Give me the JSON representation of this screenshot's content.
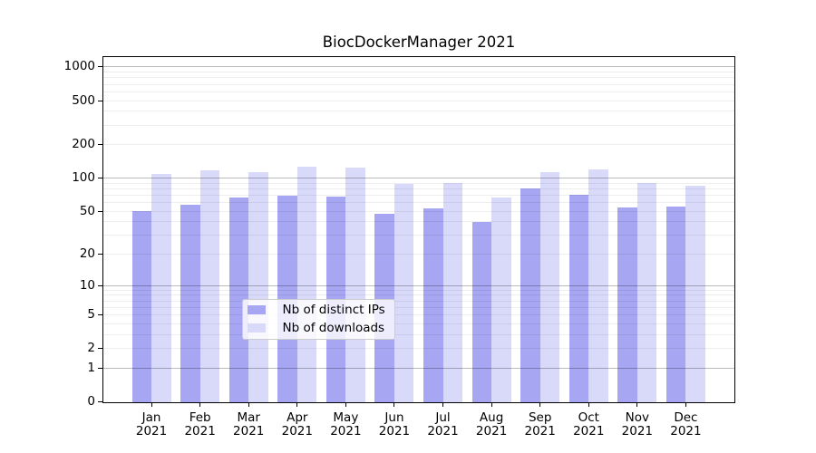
{
  "title": "BiocDockerManager 2021",
  "legend": {
    "items": [
      {
        "label": "Nb of distinct IPs",
        "color": "#a6a6f2"
      },
      {
        "label": "Nb of downloads",
        "color": "#d9d9fa"
      }
    ],
    "position": "lower center"
  },
  "axes": {
    "y_tick_labels": [
      "0",
      "1",
      "2",
      "5",
      "10",
      "20",
      "50",
      "100",
      "200",
      "500",
      "1000"
    ],
    "x_tick_labels_line1": [
      "Jan",
      "Feb",
      "Mar",
      "Apr",
      "May",
      "Jun",
      "Jul",
      "Aug",
      "Sep",
      "Oct",
      "Nov",
      "Dec"
    ],
    "x_tick_labels_line2": "2021"
  },
  "chart_data": {
    "type": "bar",
    "title": "BiocDockerManager 2021",
    "categories": [
      "Jan 2021",
      "Feb 2021",
      "Mar 2021",
      "Apr 2021",
      "May 2021",
      "Jun 2021",
      "Jul 2021",
      "Aug 2021",
      "Sep 2021",
      "Oct 2021",
      "Nov 2021",
      "Dec 2021"
    ],
    "series": [
      {
        "name": "Nb of distinct IPs",
        "color": "#a6a6f2",
        "values": [
          50,
          57,
          67,
          70,
          68,
          47,
          53,
          40,
          81,
          71,
          54,
          55
        ]
      },
      {
        "name": "Nb of downloads",
        "color": "#d9d9fa",
        "values": [
          110,
          118,
          114,
          127,
          125,
          88,
          91,
          67,
          113,
          121,
          90,
          85
        ]
      }
    ],
    "xlabel": "",
    "ylabel": "",
    "yscale": "log(1+y)",
    "yticks": [
      0,
      1,
      2,
      5,
      10,
      20,
      50,
      100,
      200,
      500,
      1000
    ],
    "ylim": [
      0,
      1240
    ],
    "grid": true,
    "grid_minor_values": [
      2,
      3,
      4,
      5,
      6,
      7,
      8,
      9,
      20,
      30,
      40,
      50,
      60,
      70,
      80,
      90,
      200,
      300,
      400,
      500,
      600,
      700,
      800,
      900
    ],
    "grid_major_values": [
      1,
      10,
      100,
      1000
    ],
    "legend_position": "lower center"
  }
}
